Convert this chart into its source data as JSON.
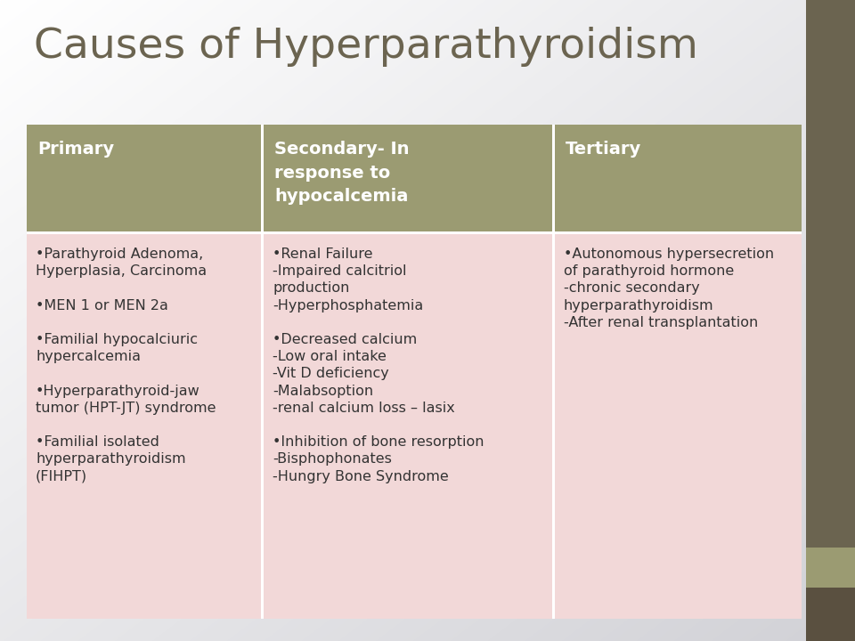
{
  "title": "Causes of Hyperparathyroidism",
  "title_color": "#6b6450",
  "title_fontsize": 34,
  "bg_top_color": "#f5f5f5",
  "bg_bottom_color": "#d0ccc8",
  "header_bg_color": "#9b9b72",
  "header_text_color": "#ffffff",
  "body_bg_color": "#f2d8d8",
  "body_text_color": "#333333",
  "border_color": "#ffffff",
  "sidebar_top_color": "#6b6450",
  "sidebar_mid_color": "#9b9b72",
  "sidebar_bot_color": "#5a5040",
  "headers": [
    "Primary",
    "Secondary- In\nresponse to\nhypocalcemia",
    "Tertiary"
  ],
  "col1_content": "•Parathyroid Adenoma,\nHyperplasia, Carcinoma\n\n•MEN 1 or MEN 2a\n\n•Familial hypocalciuric\nhypercalcemia\n\n•Hyperparathyroid-jaw\ntumor (HPT-JT) syndrome\n\n•Familial isolated\nhyperparathyroidism\n(FIHPT)",
  "col2_content": "•Renal Failure\n-Impaired calcitriol\nproduction\n-Hyperphosphatemia\n\n•Decreased calcium\n-Low oral intake\n-Vit D deficiency\n-Malabsoption\n-renal calcium loss – lasix\n\n•Inhibition of bone resorption\n-Bisphophonates\n-Hungry Bone Syndrome",
  "col3_content": "•Autonomous hypersecretion\nof parathyroid hormone\n-chronic secondary\nhyperparathyroidism\n-After renal transplantation",
  "header_fontsize": 14,
  "body_fontsize": 11.5
}
